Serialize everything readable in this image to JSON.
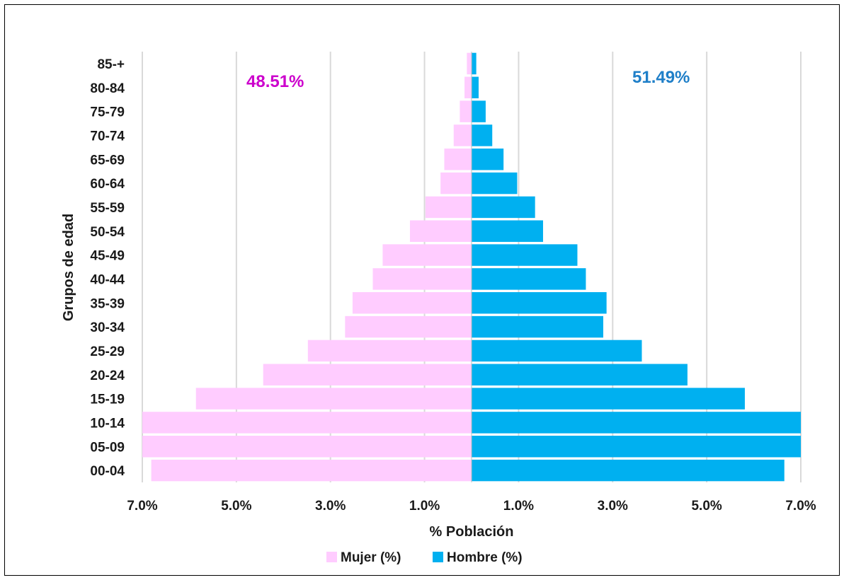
{
  "chart_data": {
    "type": "bar",
    "orientation": "horizontal-pyramid",
    "categories": [
      "85-+",
      "80-84",
      "75-79",
      "70-74",
      "65-69",
      "60-64",
      "55-59",
      "50-54",
      "45-49",
      "40-44",
      "35-39",
      "30-34",
      "25-29",
      "20-24",
      "15-19",
      "10-14",
      "05-09",
      "00-04"
    ],
    "series": [
      {
        "name": "Mujer (%)",
        "side": "left",
        "color": "#FFCCFF",
        "values": [
          0.1,
          0.15,
          0.25,
          0.38,
          0.58,
          0.66,
          0.98,
          1.31,
          1.89,
          2.1,
          2.53,
          2.69,
          3.48,
          4.43,
          5.86,
          7.0,
          7.0,
          6.81
        ]
      },
      {
        "name": "Hombre (%)",
        "side": "right",
        "color": "#00B0F0",
        "values": [
          0.1,
          0.15,
          0.3,
          0.44,
          0.68,
          0.97,
          1.35,
          1.52,
          2.25,
          2.43,
          2.87,
          2.8,
          3.62,
          4.59,
          5.81,
          7.0,
          7.0,
          6.65
        ]
      }
    ],
    "xlim": [
      -7,
      7
    ],
    "xticks": [
      -7,
      -5,
      -3,
      -1,
      1,
      3,
      5,
      7
    ],
    "xtick_labels": [
      "7.0%",
      "5.0%",
      "3.0%",
      "1.0%",
      "1.0%",
      "3.0%",
      "5.0%",
      "7.0%"
    ],
    "xlabel": "% Población",
    "ylabel": "Grupos de edad",
    "grid": true,
    "legend": "bottom",
    "annotations": [
      {
        "text": "48.51%",
        "color": "#CC00CC"
      },
      {
        "text": "51.49%",
        "color": "#1F7FC8"
      }
    ]
  }
}
